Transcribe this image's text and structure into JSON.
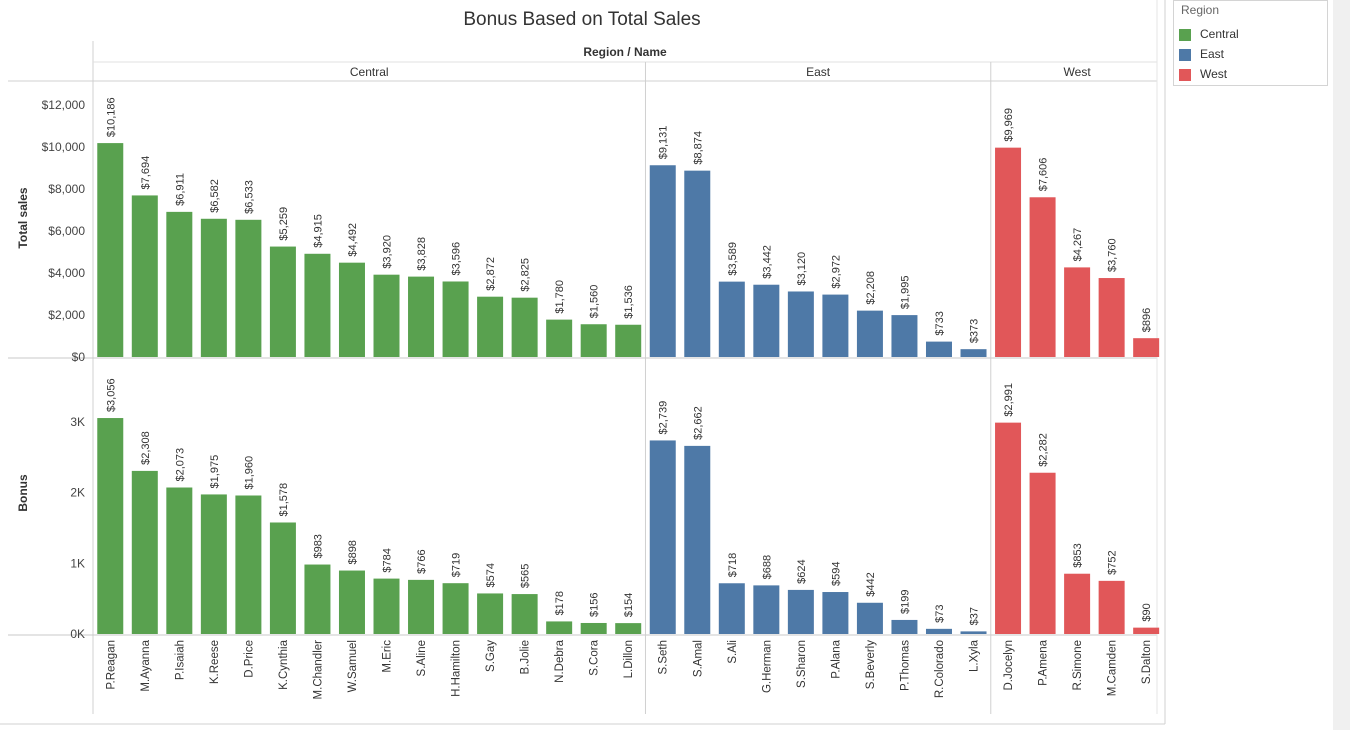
{
  "chart_data": {
    "type": "bar",
    "title": "Bonus Based on Total Sales",
    "header": "Region / Name",
    "groups": [
      {
        "name": "Central",
        "color": "#59a14f",
        "names": [
          "P.Reagan",
          "M.Ayanna",
          "P.Isaiah",
          "K.Reese",
          "D.Price",
          "K.Cynthia",
          "M.Chandler",
          "W.Samuel",
          "M.Eric",
          "S.Aline",
          "H.Hamilton",
          "S.Gay",
          "B.Jolie",
          "N.Debra",
          "S.Cora",
          "L.Dillon"
        ],
        "total_sales": [
          10186,
          7694,
          6911,
          6582,
          6533,
          5259,
          4915,
          4492,
          3920,
          3828,
          3596,
          2872,
          2825,
          1780,
          1560,
          1536
        ],
        "bonus": [
          3056,
          2308,
          2073,
          1975,
          1960,
          1578,
          983,
          898,
          784,
          766,
          719,
          574,
          565,
          178,
          156,
          154
        ]
      },
      {
        "name": "East",
        "color": "#4e79a7",
        "names": [
          "S.Seth",
          "S.Amal",
          "S.Ali",
          "G.Herman",
          "S.Sharon",
          "P.Alana",
          "S.Beverly",
          "P.Thomas",
          "R.Colorado",
          "L.Xyla"
        ],
        "total_sales": [
          9131,
          8874,
          3589,
          3442,
          3120,
          2972,
          2208,
          1995,
          733,
          373
        ],
        "bonus": [
          2739,
          2662,
          718,
          688,
          624,
          594,
          442,
          199,
          73,
          37
        ]
      },
      {
        "name": "West",
        "color": "#e15759",
        "names": [
          "D.Jocelyn",
          "P.Amena",
          "R.Simone",
          "M.Camden",
          "S.Dalton"
        ],
        "total_sales": [
          9969,
          7606,
          4267,
          3760,
          896
        ],
        "bonus": [
          2991,
          2282,
          853,
          752,
          90
        ]
      }
    ],
    "panels": [
      {
        "key": "total_sales",
        "ylabel": "Total sales",
        "ylim": [
          0,
          12000
        ],
        "ticks": [
          0,
          2000,
          4000,
          6000,
          8000,
          10000,
          12000
        ],
        "tick_labels": [
          "$0",
          "$2,000",
          "$4,000",
          "$6,000",
          "$8,000",
          "$10,000",
          "$12,000"
        ]
      },
      {
        "key": "bonus",
        "ylabel": "Bonus",
        "ylim": [
          0,
          3000
        ],
        "ticks": [
          0,
          1000,
          2000,
          3000
        ],
        "tick_labels": [
          "0K",
          "1K",
          "2K",
          "3K"
        ]
      }
    ],
    "value_format": "$#,###",
    "grid": false
  },
  "legend": {
    "title": "Region",
    "items": [
      {
        "label": "Central",
        "color": "#59a14f"
      },
      {
        "label": "East",
        "color": "#4e79a7"
      },
      {
        "label": "West",
        "color": "#e15759"
      }
    ]
  }
}
